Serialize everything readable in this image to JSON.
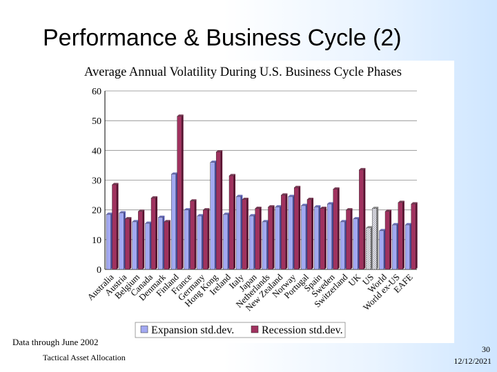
{
  "slide": {
    "title": "Performance & Business Cycle (2)",
    "footer_note": "Data through June 2002",
    "footer_left": "Tactical Asset Allocation",
    "page_number": "30",
    "date": "12/12/2021"
  },
  "colors": {
    "expansion": "#a3a9f2",
    "expansion_dark": "#4a4fa8",
    "recession": "#a0325f",
    "recession_dark": "#5a1030",
    "us_hatch": "#b9b9c4"
  },
  "chart_data": {
    "type": "bar",
    "title": "Average Annual Volatility During U.S. Business Cycle Phases",
    "xlabel": "",
    "ylabel": "",
    "ylim": [
      0,
      60
    ],
    "yticks": [
      0,
      10,
      20,
      30,
      40,
      50,
      60
    ],
    "categories": [
      "Australia",
      "Austria",
      "Belgium",
      "Canada",
      "Denmark",
      "Finland",
      "France",
      "Germany",
      "Hong Kong",
      "Ireland",
      "Italy",
      "Japan",
      "Netherlands",
      "New Zealand",
      "Norway",
      "Portugal",
      "Spain",
      "Sweden",
      "Switzerland",
      "UK",
      "US",
      "World",
      "World ex-US",
      "EAFE"
    ],
    "series": [
      {
        "name": "Expansion std.dev.",
        "values": [
          18.5,
          19,
          16,
          15.5,
          17.5,
          32,
          20,
          18,
          36,
          18.5,
          24.5,
          18,
          16,
          21,
          24.5,
          21.5,
          21,
          22,
          16,
          17,
          14,
          13,
          15,
          15
        ]
      },
      {
        "name": "Recession std.dev.",
        "values": [
          28.5,
          17,
          19.5,
          24,
          16,
          51.5,
          23,
          20,
          39.5,
          31.5,
          23.5,
          20.5,
          21,
          25,
          27.5,
          23.5,
          20.5,
          27,
          20,
          33.5,
          20.5,
          19.5,
          22.5,
          22
        ]
      }
    ],
    "grid": true,
    "legend_position": "bottom"
  }
}
